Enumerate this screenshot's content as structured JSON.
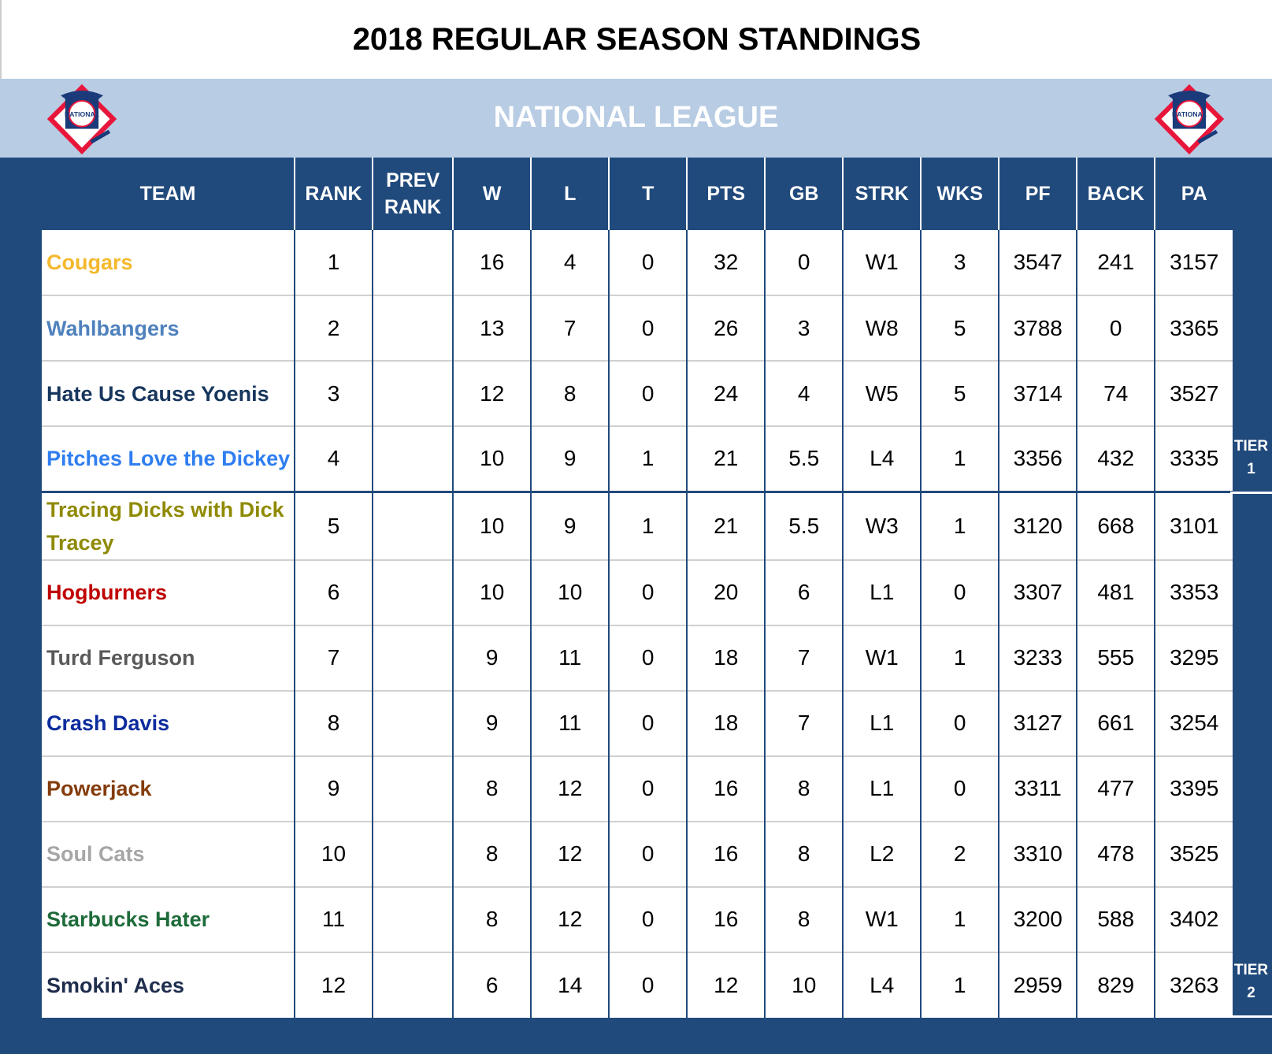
{
  "title": "2018 REGULAR SEASON STANDINGS",
  "league": "NATIONAL LEAGUE",
  "logo_text": "NATIONAL",
  "headers": [
    "TEAM",
    "RANK",
    "PREV RANK",
    "W",
    "L",
    "T",
    "PTS",
    "GB",
    "STRK",
    "WKS",
    "PF",
    "BACK",
    "PA"
  ],
  "rows": [
    {
      "team": "Cougars",
      "color": "#f4b82c",
      "rank": "1",
      "prev": "",
      "w": "16",
      "l": "4",
      "t": "0",
      "pts": "32",
      "gb": "0",
      "strk": "W1",
      "wks": "3",
      "pf": "3547",
      "back": "241",
      "pa": "3157"
    },
    {
      "team": "Wahlbangers",
      "color": "#4f81bd",
      "rank": "2",
      "prev": "",
      "w": "13",
      "l": "7",
      "t": "0",
      "pts": "26",
      "gb": "3",
      "strk": "W8",
      "wks": "5",
      "pf": "3788",
      "back": "0",
      "pa": "3365"
    },
    {
      "team": "Hate Us Cause Yoenis",
      "color": "#17365d",
      "rank": "3",
      "prev": "",
      "w": "12",
      "l": "8",
      "t": "0",
      "pts": "24",
      "gb": "4",
      "strk": "W5",
      "wks": "5",
      "pf": "3714",
      "back": "74",
      "pa": "3527"
    },
    {
      "team": "Pitches Love the Dickey",
      "color": "#2f7ef0",
      "rank": "4",
      "prev": "",
      "w": "10",
      "l": "9",
      "t": "1",
      "pts": "21",
      "gb": "5.5",
      "strk": "L4",
      "wks": "1",
      "pf": "3356",
      "back": "432",
      "pa": "3335"
    },
    {
      "team": "Tracing Dicks with Dick Tracey",
      "color": "#8f8a00",
      "rank": "5",
      "prev": "",
      "w": "10",
      "l": "9",
      "t": "1",
      "pts": "21",
      "gb": "5.5",
      "strk": "W3",
      "wks": "1",
      "pf": "3120",
      "back": "668",
      "pa": "3101"
    },
    {
      "team": "Hogburners",
      "color": "#c00000",
      "rank": "6",
      "prev": "",
      "w": "10",
      "l": "10",
      "t": "0",
      "pts": "20",
      "gb": "6",
      "strk": "L1",
      "wks": "0",
      "pf": "3307",
      "back": "481",
      "pa": "3353"
    },
    {
      "team": "Turd Ferguson",
      "color": "#595959",
      "rank": "7",
      "prev": "",
      "w": "9",
      "l": "11",
      "t": "0",
      "pts": "18",
      "gb": "7",
      "strk": "W1",
      "wks": "1",
      "pf": "3233",
      "back": "555",
      "pa": "3295"
    },
    {
      "team": "Crash Davis",
      "color": "#0c2c9e",
      "rank": "8",
      "prev": "",
      "w": "9",
      "l": "11",
      "t": "0",
      "pts": "18",
      "gb": "7",
      "strk": "L1",
      "wks": "0",
      "pf": "3127",
      "back": "661",
      "pa": "3254"
    },
    {
      "team": "Powerjack",
      "color": "#843c0c",
      "rank": "9",
      "prev": "",
      "w": "8",
      "l": "12",
      "t": "0",
      "pts": "16",
      "gb": "8",
      "strk": "L1",
      "wks": "0",
      "pf": "3311",
      "back": "477",
      "pa": "3395"
    },
    {
      "team": "Soul Cats",
      "color": "#a6a6a6",
      "rank": "10",
      "prev": "",
      "w": "8",
      "l": "12",
      "t": "0",
      "pts": "16",
      "gb": "8",
      "strk": "L2",
      "wks": "2",
      "pf": "3310",
      "back": "478",
      "pa": "3525"
    },
    {
      "team": "Starbucks Hater",
      "color": "#1e6b3a",
      "rank": "11",
      "prev": "",
      "w": "8",
      "l": "12",
      "t": "0",
      "pts": "16",
      "gb": "8",
      "strk": "W1",
      "wks": "1",
      "pf": "3200",
      "back": "588",
      "pa": "3402"
    },
    {
      "team": "Smokin' Aces",
      "color": "#1f2d4d",
      "rank": "12",
      "prev": "",
      "w": "6",
      "l": "14",
      "t": "0",
      "pts": "12",
      "gb": "10",
      "strk": "L4",
      "wks": "1",
      "pf": "2959",
      "back": "829",
      "pa": "3263"
    }
  ],
  "tiers": [
    {
      "label": "TIER",
      "num": "1"
    },
    {
      "label": "TIER",
      "num": "2"
    }
  ],
  "colors": {
    "header_blue": "#214a7c",
    "band": "#b8cce4"
  }
}
